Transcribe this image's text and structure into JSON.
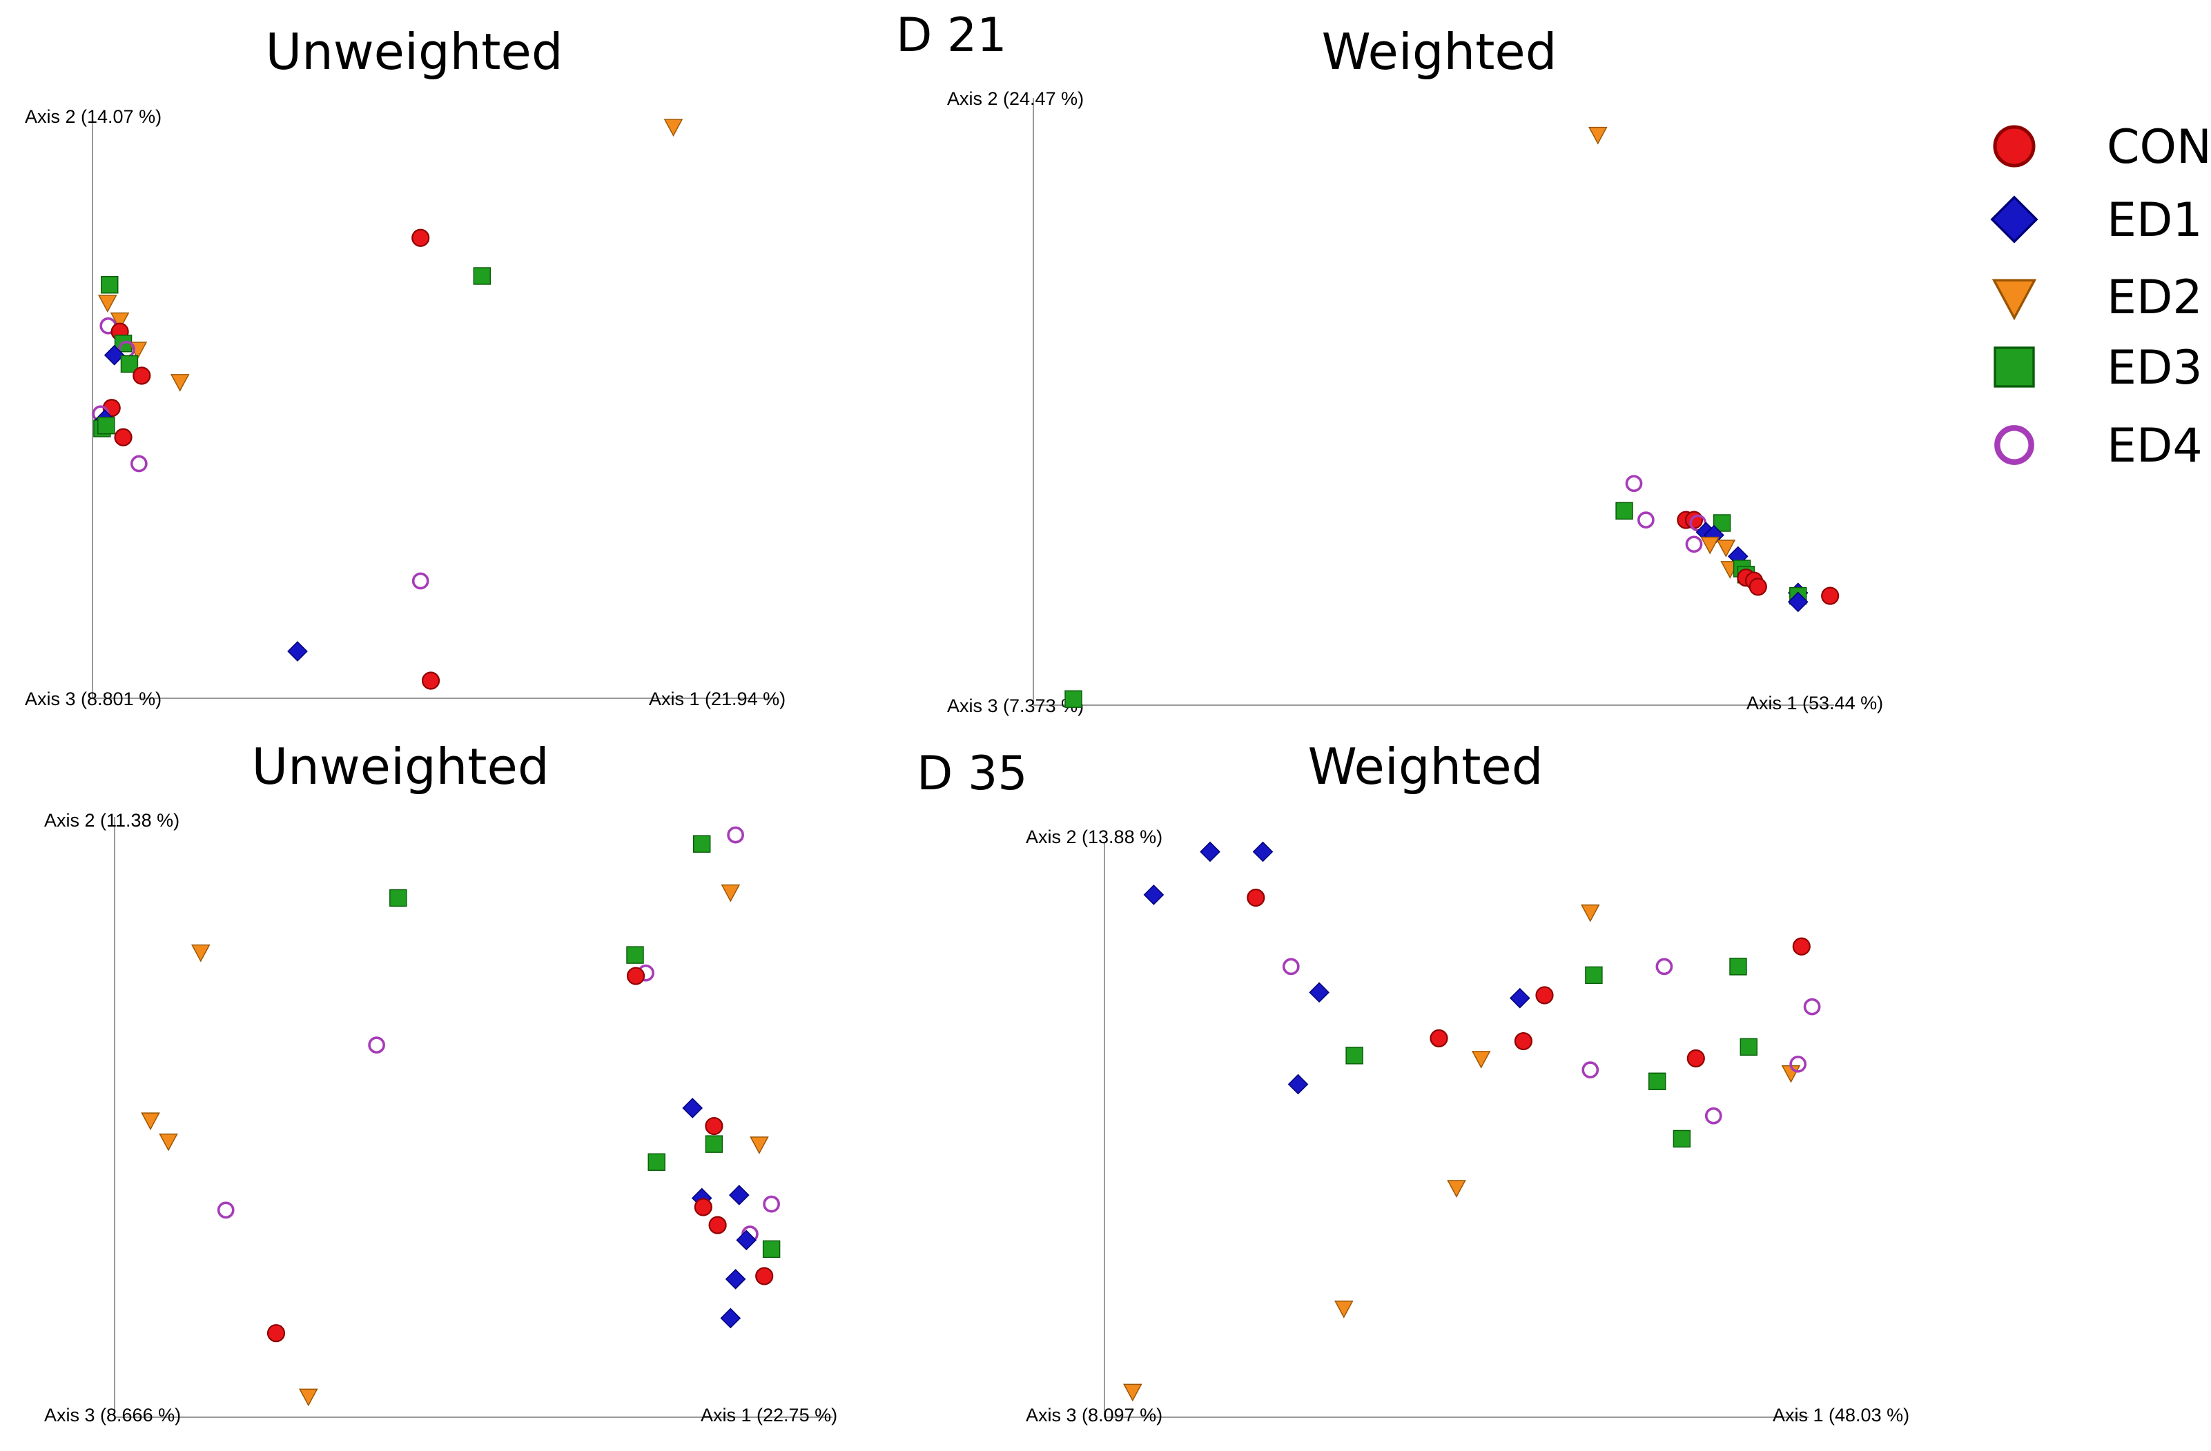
{
  "figure": {
    "day_labels": [
      "D 21",
      "D 35"
    ]
  },
  "groups": [
    {
      "name": "CON",
      "marker": "circle",
      "fill": "#e8161a",
      "stroke": "#8f0000"
    },
    {
      "name": "ED1",
      "marker": "diamond",
      "fill": "#1616c4",
      "stroke": "#00007a"
    },
    {
      "name": "ED2",
      "marker": "triangle-down",
      "fill": "#f28a1c",
      "stroke": "#9a5400"
    },
    {
      "name": "ED3",
      "marker": "square",
      "fill": "#1f9e1f",
      "stroke": "#0a5c0a"
    },
    {
      "name": "ED4",
      "marker": "ring",
      "fill": "none",
      "stroke": "#a63cb8"
    }
  ],
  "chart_data": [
    {
      "type": "scatter",
      "day": "D 21",
      "title": "Unweighted",
      "axis_labels": {
        "axis1": "Axis 1 (21.94 %)",
        "axis2": "Axis 2 (14.07 %)",
        "axis3": "Axis 3 (8.801 %)"
      },
      "xlim": [
        0,
        100
      ],
      "ylim": [
        0,
        100
      ],
      "points": [
        {
          "group": "ED2",
          "x": 85.0,
          "y": 97.5
        },
        {
          "group": "CON",
          "x": 48.0,
          "y": 78.5
        },
        {
          "group": "ED3",
          "x": 57.0,
          "y": 72.0
        },
        {
          "group": "ED3",
          "x": 2.5,
          "y": 70.5
        },
        {
          "group": "ED2",
          "x": 2.2,
          "y": 67.5
        },
        {
          "group": "ED2",
          "x": 4.0,
          "y": 64.5
        },
        {
          "group": "ED4",
          "x": 2.3,
          "y": 63.5
        },
        {
          "group": "CON",
          "x": 4.0,
          "y": 62.5
        },
        {
          "group": "ED3",
          "x": 4.5,
          "y": 60.5
        },
        {
          "group": "ED2",
          "x": 6.6,
          "y": 59.5
        },
        {
          "group": "ED4",
          "x": 5.0,
          "y": 59.5
        },
        {
          "group": "ED1",
          "x": 3.2,
          "y": 58.5
        },
        {
          "group": "ED3",
          "x": 5.4,
          "y": 57.0
        },
        {
          "group": "CON",
          "x": 7.2,
          "y": 55.0
        },
        {
          "group": "ED2",
          "x": 12.8,
          "y": 54.0
        },
        {
          "group": "CON",
          "x": 2.8,
          "y": 49.5
        },
        {
          "group": "ED4",
          "x": 1.2,
          "y": 48.5
        },
        {
          "group": "ED1",
          "x": 1.8,
          "y": 47.5
        },
        {
          "group": "ED3",
          "x": 1.4,
          "y": 46.0
        },
        {
          "group": "ED3",
          "x": 2.0,
          "y": 46.5
        },
        {
          "group": "CON",
          "x": 4.5,
          "y": 44.5
        },
        {
          "group": "ED4",
          "x": 6.8,
          "y": 40.0
        },
        {
          "group": "ED4",
          "x": 48.0,
          "y": 20.0
        },
        {
          "group": "ED1",
          "x": 30.0,
          "y": 8.0
        },
        {
          "group": "CON",
          "x": 49.5,
          "y": 3.0
        }
      ]
    },
    {
      "type": "scatter",
      "day": "D 21",
      "title": "Weighted",
      "axis_labels": {
        "axis1": "Axis 1 (53.44 %)",
        "axis2": "Axis 2 (24.47 %)",
        "axis3": "Axis 3 (7.373 %)"
      },
      "xlim": [
        0,
        100
      ],
      "ylim": [
        0,
        100
      ],
      "points": [
        {
          "group": "ED2",
          "x": 70.5,
          "y": 94.0
        },
        {
          "group": "ED4",
          "x": 75.0,
          "y": 36.5
        },
        {
          "group": "ED3",
          "x": 73.8,
          "y": 32.0
        },
        {
          "group": "ED4",
          "x": 76.5,
          "y": 30.5
        },
        {
          "group": "CON",
          "x": 81.5,
          "y": 30.5
        },
        {
          "group": "CON",
          "x": 82.5,
          "y": 30.5
        },
        {
          "group": "ED4",
          "x": 83.0,
          "y": 30.0
        },
        {
          "group": "ED3",
          "x": 86.0,
          "y": 30.0
        },
        {
          "group": "ED1",
          "x": 84.0,
          "y": 28.5
        },
        {
          "group": "ED1",
          "x": 85.0,
          "y": 28.0
        },
        {
          "group": "ED4",
          "x": 82.5,
          "y": 26.5
        },
        {
          "group": "ED2",
          "x": 84.5,
          "y": 26.5
        },
        {
          "group": "ED2",
          "x": 86.5,
          "y": 26.0
        },
        {
          "group": "ED1",
          "x": 88.0,
          "y": 24.5
        },
        {
          "group": "ED2",
          "x": 87.0,
          "y": 22.5
        },
        {
          "group": "ED3",
          "x": 88.5,
          "y": 22.5
        },
        {
          "group": "ED3",
          "x": 89.0,
          "y": 21.5
        },
        {
          "group": "CON",
          "x": 89.0,
          "y": 21.0
        },
        {
          "group": "CON",
          "x": 90.0,
          "y": 20.5
        },
        {
          "group": "CON",
          "x": 90.5,
          "y": 19.5
        },
        {
          "group": "ED1",
          "x": 95.5,
          "y": 18.5
        },
        {
          "group": "ED3",
          "x": 95.5,
          "y": 18.0
        },
        {
          "group": "ED1",
          "x": 95.5,
          "y": 17.0
        },
        {
          "group": "CON",
          "x": 99.5,
          "y": 18.0
        },
        {
          "group": "ED3",
          "x": 5.0,
          "y": 1.0
        }
      ]
    },
    {
      "type": "scatter",
      "day": "D 35",
      "title": "Unweighted",
      "axis_labels": {
        "axis1": "Axis 1 (22.75 %)",
        "axis2": "Axis 2 (11.38 %)",
        "axis3": "Axis 3 (8.666 %)"
      },
      "xlim": [
        0,
        100
      ],
      "ylim": [
        0,
        100
      ],
      "points": [
        {
          "group": "ED4",
          "x": 86.5,
          "y": 97.0
        },
        {
          "group": "ED3",
          "x": 81.8,
          "y": 95.5
        },
        {
          "group": "ED2",
          "x": 85.8,
          "y": 87.5
        },
        {
          "group": "ED3",
          "x": 39.5,
          "y": 86.5
        },
        {
          "group": "ED3",
          "x": 72.5,
          "y": 77.0
        },
        {
          "group": "ED4",
          "x": 74.0,
          "y": 74.0
        },
        {
          "group": "CON",
          "x": 72.6,
          "y": 73.5
        },
        {
          "group": "ED2",
          "x": 12.0,
          "y": 77.5
        },
        {
          "group": "ED4",
          "x": 36.5,
          "y": 62.0
        },
        {
          "group": "ED1",
          "x": 80.5,
          "y": 51.5
        },
        {
          "group": "CON",
          "x": 83.5,
          "y": 48.5
        },
        {
          "group": "ED2",
          "x": 5.0,
          "y": 49.5
        },
        {
          "group": "ED2",
          "x": 7.5,
          "y": 46.0
        },
        {
          "group": "ED2",
          "x": 89.8,
          "y": 45.5
        },
        {
          "group": "ED3",
          "x": 83.5,
          "y": 45.5
        },
        {
          "group": "ED3",
          "x": 75.5,
          "y": 42.5
        },
        {
          "group": "ED1",
          "x": 81.8,
          "y": 36.5
        },
        {
          "group": "ED1",
          "x": 87.0,
          "y": 37.0
        },
        {
          "group": "CON",
          "x": 82.0,
          "y": 35.0
        },
        {
          "group": "ED4",
          "x": 91.5,
          "y": 35.5
        },
        {
          "group": "CON",
          "x": 84.0,
          "y": 32.0
        },
        {
          "group": "ED4",
          "x": 15.5,
          "y": 34.5
        },
        {
          "group": "ED4",
          "x": 88.5,
          "y": 30.5
        },
        {
          "group": "ED1",
          "x": 88.0,
          "y": 29.5
        },
        {
          "group": "ED3",
          "x": 91.5,
          "y": 28.0
        },
        {
          "group": "CON",
          "x": 90.5,
          "y": 23.5
        },
        {
          "group": "ED1",
          "x": 86.5,
          "y": 23.0
        },
        {
          "group": "ED1",
          "x": 85.8,
          "y": 16.5
        },
        {
          "group": "CON",
          "x": 22.5,
          "y": 14.0
        },
        {
          "group": "ED2",
          "x": 27.0,
          "y": 3.5
        }
      ]
    },
    {
      "type": "scatter",
      "day": "D 35",
      "title": "Weighted",
      "axis_labels": {
        "axis1": "Axis 1 (48.03 %)",
        "axis2": "Axis 2 (13.88 %)",
        "axis3": "Axis 3 (8.097 %)"
      },
      "xlim": [
        0,
        100
      ],
      "ylim": [
        0,
        100
      ],
      "points": [
        {
          "group": "ED1",
          "x": 15.0,
          "y": 98.5
        },
        {
          "group": "ED1",
          "x": 22.5,
          "y": 98.5
        },
        {
          "group": "ED1",
          "x": 7.0,
          "y": 91.0
        },
        {
          "group": "CON",
          "x": 21.5,
          "y": 90.5
        },
        {
          "group": "ED2",
          "x": 69.0,
          "y": 88.0
        },
        {
          "group": "CON",
          "x": 99.0,
          "y": 82.0
        },
        {
          "group": "ED4",
          "x": 26.5,
          "y": 78.5
        },
        {
          "group": "ED4",
          "x": 79.5,
          "y": 78.5
        },
        {
          "group": "ED3",
          "x": 90.0,
          "y": 78.5
        },
        {
          "group": "ED3",
          "x": 69.5,
          "y": 77.0
        },
        {
          "group": "ED1",
          "x": 30.5,
          "y": 74.0
        },
        {
          "group": "ED1",
          "x": 59.0,
          "y": 73.0
        },
        {
          "group": "CON",
          "x": 62.5,
          "y": 73.5
        },
        {
          "group": "ED4",
          "x": 100.5,
          "y": 71.5
        },
        {
          "group": "ED3",
          "x": 35.5,
          "y": 63.0
        },
        {
          "group": "CON",
          "x": 47.5,
          "y": 66.0
        },
        {
          "group": "CON",
          "x": 59.5,
          "y": 65.5
        },
        {
          "group": "ED2",
          "x": 53.5,
          "y": 62.5
        },
        {
          "group": "ED3",
          "x": 91.5,
          "y": 64.5
        },
        {
          "group": "CON",
          "x": 84.0,
          "y": 62.5
        },
        {
          "group": "ED4",
          "x": 69.0,
          "y": 60.5
        },
        {
          "group": "ED2",
          "x": 97.5,
          "y": 60.0
        },
        {
          "group": "ED4",
          "x": 98.5,
          "y": 61.5
        },
        {
          "group": "ED1",
          "x": 27.5,
          "y": 58.0
        },
        {
          "group": "ED3",
          "x": 78.5,
          "y": 58.5
        },
        {
          "group": "ED4",
          "x": 86.5,
          "y": 52.5
        },
        {
          "group": "ED3",
          "x": 82.0,
          "y": 48.5
        },
        {
          "group": "ED2",
          "x": 50.0,
          "y": 40.0
        },
        {
          "group": "ED2",
          "x": 34.0,
          "y": 19.0
        },
        {
          "group": "ED2",
          "x": 4.0,
          "y": 4.5
        }
      ]
    }
  ]
}
